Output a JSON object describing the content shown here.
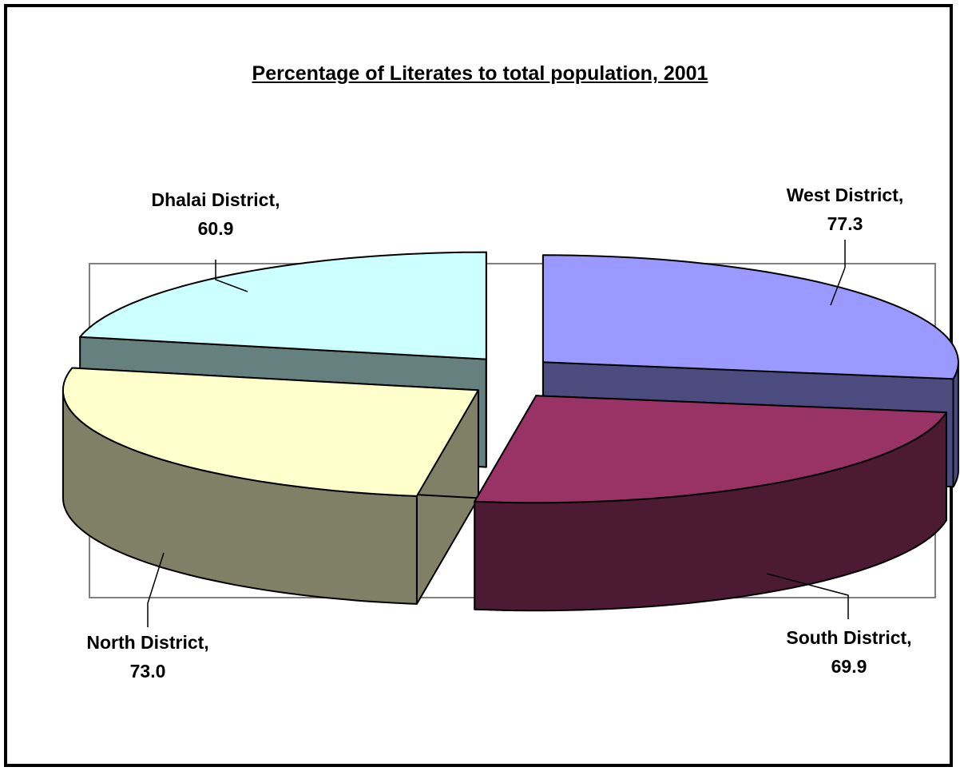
{
  "chart_data": {
    "type": "pie",
    "title": "Percentage of Literates to total population, 2001",
    "categories": [
      "West District",
      "South District",
      "North District",
      "Dhalai District"
    ],
    "values": [
      77.3,
      69.9,
      73.0,
      60.9
    ],
    "value_labels": [
      "77.3",
      "69.9",
      "73.0",
      "60.9"
    ],
    "style": "3d-exploded",
    "legend": "none",
    "colors": {
      "West District": "#9999ff",
      "South District": "#993366",
      "North District": "#ffffcc",
      "Dhalai District": "#ccffff"
    },
    "side_colors": {
      "West District": "#4b4b80",
      "South District": "#4d1a33",
      "North District": "#808066",
      "Dhalai District": "#668080"
    }
  }
}
